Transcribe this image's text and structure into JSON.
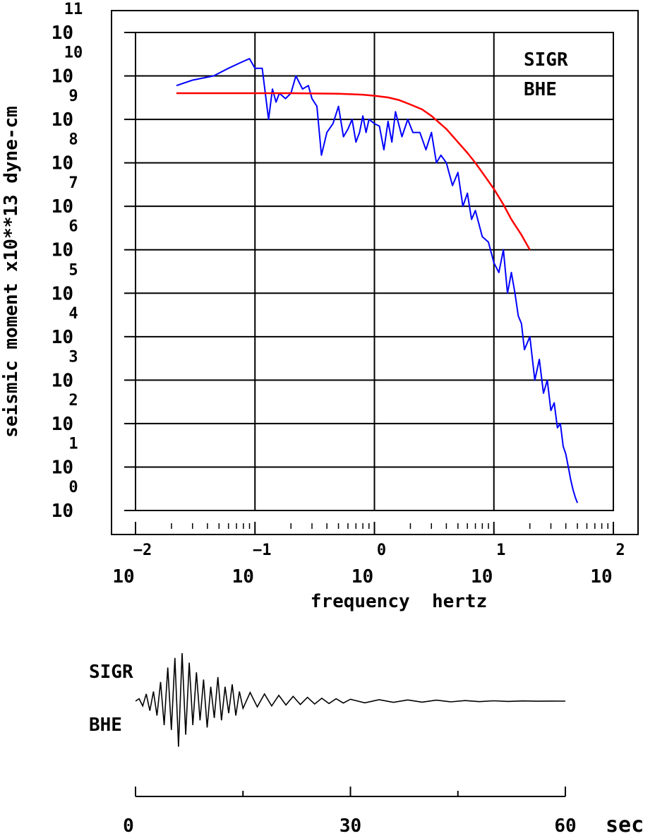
{
  "chart_data": [
    {
      "type": "line",
      "xlabel": "frequency  hertz",
      "ylabel": "seismic moment x10**13 dyne-cm",
      "x_scale": "log",
      "y_scale": "log",
      "xlim": [
        0.01,
        100
      ],
      "ylim": [
        1,
        100000000000
      ],
      "grid": true,
      "x_ticks": [
        {
          "base": "10",
          "exp": "−2"
        },
        {
          "base": "10",
          "exp": "−1"
        },
        {
          "base": "10",
          "exp": "0"
        },
        {
          "base": "10",
          "exp": "1"
        },
        {
          "base": "10",
          "exp": "2"
        }
      ],
      "y_ticks": [
        {
          "base": "10",
          "exp": "0"
        },
        {
          "base": "10",
          "exp": "1"
        },
        {
          "base": "10",
          "exp": "2"
        },
        {
          "base": "10",
          "exp": "3"
        },
        {
          "base": "10",
          "exp": "4"
        },
        {
          "base": "10",
          "exp": "5"
        },
        {
          "base": "10",
          "exp": "6"
        },
        {
          "base": "10",
          "exp": "7"
        },
        {
          "base": "10",
          "exp": "8"
        },
        {
          "base": "10",
          "exp": "9"
        },
        {
          "base": "10",
          "exp": "10"
        },
        {
          "base": "10",
          "exp": "11"
        }
      ],
      "annotations": [
        "SIGR",
        "BHE"
      ],
      "series": [
        {
          "color": "#0000ff",
          "x": [
            0.022,
            0.03,
            0.045,
            0.06,
            0.075,
            0.09,
            0.1,
            0.115,
            0.13,
            0.14,
            0.15,
            0.16,
            0.18,
            0.2,
            0.22,
            0.25,
            0.28,
            0.3,
            0.33,
            0.36,
            0.4,
            0.45,
            0.5,
            0.55,
            0.6,
            0.65,
            0.7,
            0.75,
            0.8,
            0.85,
            0.9,
            1.0,
            1.1,
            1.2,
            1.3,
            1.4,
            1.5,
            1.7,
            1.9,
            2.1,
            2.4,
            2.7,
            3.0,
            3.3,
            3.6,
            4.0,
            4.5,
            5.0,
            5.5,
            6.0,
            6.5,
            7.0,
            8.0,
            9.0,
            10.0,
            11.0,
            12.0,
            13.0,
            14.0,
            15.0,
            16.0,
            17.0,
            18.0,
            20.0,
            22.0,
            24.0,
            26.0,
            28.0,
            30.0,
            32.0,
            34.0,
            36.0,
            38.0,
            40.0,
            42.0,
            44.0,
            46.0,
            48.0,
            50.0
          ],
          "y": [
            6000000000,
            8000000000,
            10000000000,
            15000000000,
            20000000000,
            25000000000,
            15000000000,
            15000000000,
            1000000000,
            5000000000,
            2500000000,
            4000000000,
            3000000000,
            4000000000,
            10000000000,
            5000000000,
            6000000000,
            3000000000,
            2000000000,
            150000000,
            500000000,
            800000000,
            2000000000,
            400000000,
            600000000,
            1000000000,
            300000000,
            500000000,
            1200000000,
            500000000,
            1000000000,
            800000000,
            700000000,
            200000000,
            900000000,
            300000000,
            1500000000,
            400000000,
            1000000000,
            500000000,
            500000000,
            200000000,
            500000000,
            100000000,
            150000000,
            100000000,
            30000000,
            60000000,
            10000000,
            20000000,
            5000000,
            8000000,
            2000000,
            1500000,
            500000,
            300000,
            1000000,
            100000,
            300000,
            100000,
            30000,
            20000,
            5000,
            10000,
            1000,
            3000,
            500,
            1000,
            200,
            300,
            80,
            100,
            30,
            20,
            10,
            5,
            3,
            2,
            1.5
          ]
        },
        {
          "color": "#ff0000",
          "x": [
            0.022,
            0.05,
            0.1,
            0.2,
            0.5,
            0.8,
            1.0,
            1.3,
            1.6,
            2.0,
            2.5,
            3.0,
            4.0,
            5.0,
            6.0,
            7.0,
            8.0,
            10.0,
            12.0,
            14.0,
            17.0,
            20.0
          ],
          "y": [
            4000000000,
            4000000000,
            4000000000,
            4000000000,
            3900000000,
            3700000000,
            3500000000,
            3200000000,
            2800000000,
            2200000000,
            1700000000,
            1200000000,
            600000000,
            300000000,
            170000000,
            100000000,
            60000000,
            25000000,
            11000000,
            5000000,
            2200000,
            1000000
          ]
        }
      ]
    },
    {
      "type": "line",
      "label_top": "SIGR",
      "label_bottom": "BHE",
      "xlim": [
        0,
        60
      ],
      "x_ticks": [
        "0",
        "30",
        "60"
      ],
      "x_unit": "sec",
      "series": [
        {
          "color": "#000000",
          "x": [
            0,
            0.5,
            1.0,
            1.5,
            2.0,
            2.5,
            3.0,
            3.5,
            4.0,
            4.5,
            5.0,
            5.5,
            6.0,
            6.5,
            7.0,
            7.5,
            8.0,
            8.5,
            9.0,
            9.5,
            10.0,
            10.5,
            11.0,
            11.5,
            12.0,
            12.5,
            13.0,
            13.5,
            14.0,
            14.5,
            15.0,
            16.0,
            17.0,
            18.0,
            19.0,
            20.0,
            21.0,
            22.0,
            23.0,
            24.0,
            25.0,
            26.0,
            27.0,
            28.0,
            29.0,
            30.0,
            32.0,
            34.0,
            36.0,
            38.0,
            40.0,
            42.0,
            44.0,
            46.0,
            48.0,
            50.0,
            52.0,
            54.0,
            56.0,
            58.0,
            60.0
          ],
          "y": [
            0,
            0.05,
            -0.1,
            0.15,
            -0.2,
            0.2,
            -0.3,
            0.4,
            -0.5,
            0.7,
            -0.6,
            0.9,
            -0.95,
            1.0,
            -0.7,
            0.8,
            -0.5,
            0.6,
            -0.4,
            0.45,
            -0.55,
            0.3,
            -0.35,
            0.5,
            -0.4,
            0.3,
            -0.25,
            0.35,
            -0.3,
            0.2,
            -0.15,
            0.18,
            -0.12,
            0.15,
            -0.1,
            0.12,
            -0.08,
            0.1,
            -0.07,
            0.08,
            -0.06,
            0.06,
            -0.05,
            0.05,
            -0.04,
            0.04,
            -0.035,
            0.03,
            -0.025,
            0.025,
            -0.02,
            0.02,
            -0.015,
            0.012,
            -0.01,
            0.008,
            -0.006,
            0.004,
            -0.002,
            0.001,
            0
          ]
        }
      ]
    }
  ]
}
